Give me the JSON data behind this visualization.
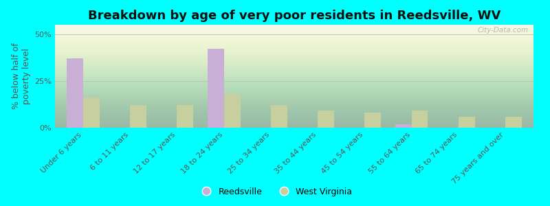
{
  "title": "Breakdown by age of very poor residents in Reedsville, WV",
  "categories": [
    "Under 6 years",
    "6 to 11 years",
    "12 to 17 years",
    "18 to 24 years",
    "25 to 34 years",
    "35 to 44 years",
    "45 to 54 years",
    "55 to 64 years",
    "65 to 74 years",
    "75 years and over"
  ],
  "reedsville": [
    37,
    0,
    0,
    42,
    0,
    0,
    0,
    2,
    0,
    0
  ],
  "west_virginia": [
    16,
    12,
    12,
    18,
    12,
    9,
    8,
    9,
    6,
    6
  ],
  "reedsville_color": "#c9aed6",
  "west_virginia_color": "#c8cf9e",
  "background_color": "#00ffff",
  "ylabel": "% below half of\npoverty level",
  "ylim": [
    0,
    55
  ],
  "yticks": [
    0,
    25,
    50
  ],
  "ytick_labels": [
    "0%",
    "25%",
    "50%"
  ],
  "bar_width": 0.35,
  "legend_labels": [
    "Reedsville",
    "West Virginia"
  ],
  "watermark": "City-Data.com",
  "title_fontsize": 13,
  "axis_fontsize": 9,
  "tick_fontsize": 8
}
